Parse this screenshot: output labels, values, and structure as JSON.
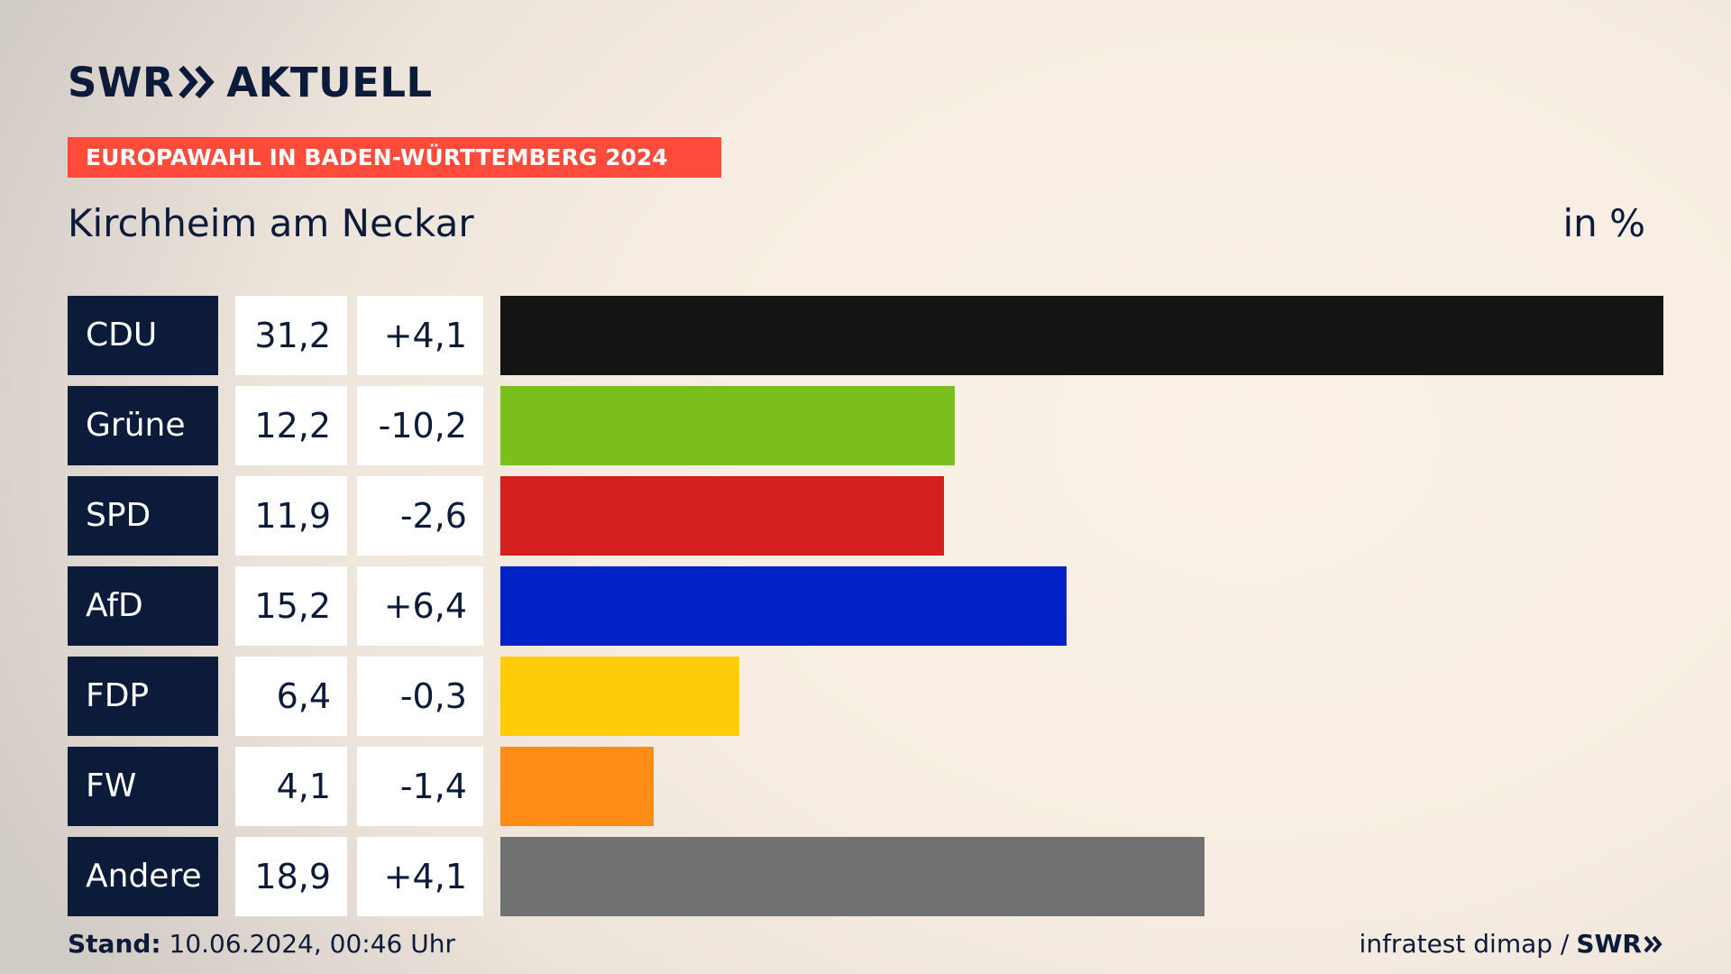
{
  "header": {
    "logo_left": "SWR",
    "logo_right": "AKTUELL",
    "kicker": "EUROPAWAHL IN BADEN-WÜRTTEMBERG 2024",
    "subtitle": "Kirchheim am Neckar",
    "unit": "in %"
  },
  "footer": {
    "stand_label": "Stand:",
    "stand_value": "10.06.2024, 00:46 Uhr",
    "source": "infratest dimap /",
    "brand": "SWR"
  },
  "colors": {
    "background": "#f7ede2",
    "header_text": "#0d1b3a",
    "kicker_bg": "#ff4b3a",
    "party_label_bg": "#0d1b3a"
  },
  "icons": {
    "logo_chevron": "double-chevron-right-icon",
    "footer_chevron": "double-chevron-right-icon"
  },
  "chart_data": {
    "type": "bar",
    "orientation": "horizontal",
    "title": "Kirchheim am Neckar",
    "unit": "in %",
    "xlim": [
      0,
      31.2
    ],
    "categories": [
      "CDU",
      "Grüne",
      "SPD",
      "AfD",
      "FDP",
      "FW",
      "Andere"
    ],
    "values": [
      31.2,
      12.2,
      11.9,
      15.2,
      6.4,
      4.1,
      18.9
    ],
    "value_labels": [
      "31,2",
      "12,2",
      "11,9",
      "15,2",
      "6,4",
      "4,1",
      "18,9"
    ],
    "diff_labels": [
      "+4,1",
      "-10,2",
      "-2,6",
      "+6,4",
      "-0,3",
      "-1,4",
      "+4,1"
    ],
    "diffs": [
      4.1,
      -10.2,
      -2.6,
      6.4,
      -0.3,
      -1.4,
      4.1
    ],
    "bar_colors": [
      "#141414",
      "#7abf1c",
      "#d41f1f",
      "#0022c7",
      "#ffcc0a",
      "#ff8c17",
      "#707173"
    ]
  }
}
